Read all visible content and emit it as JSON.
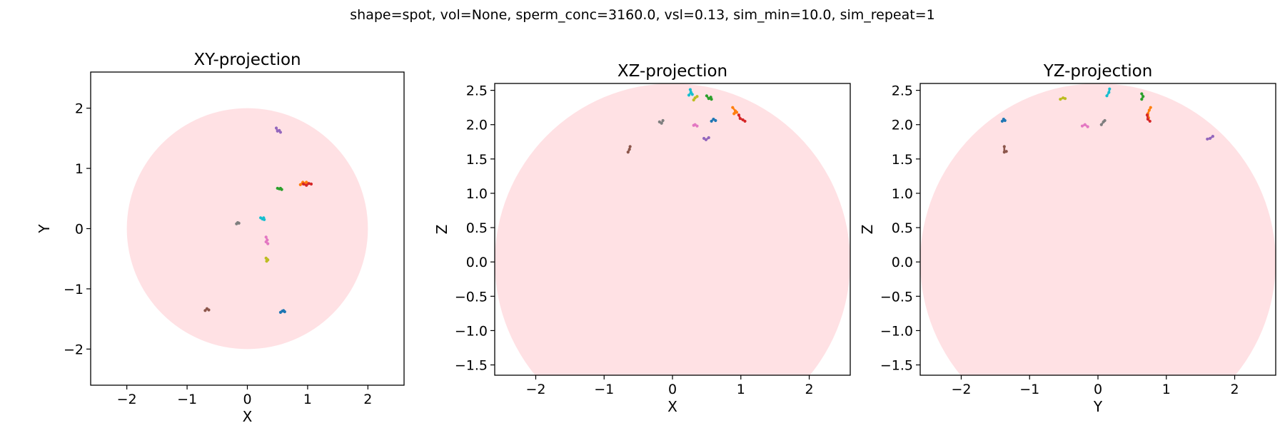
{
  "figure": {
    "suptitle": "shape=spot, vol=None, sperm_conc=3160.0, vsl=0.13, sim_min=10.0, sim_repeat=1"
  },
  "colors": {
    "sphere": "#ffe1e4",
    "tracks": [
      "#1f77b4",
      "#ff7f0e",
      "#2ca02c",
      "#d62728",
      "#9467bd",
      "#8c564b",
      "#e377c2",
      "#7f7f7f",
      "#bcbd22",
      "#17becf"
    ]
  },
  "chart_data": [
    {
      "type": "scatter",
      "title": "XY-projection",
      "xlabel": "X",
      "ylabel": "Y",
      "xlim": [
        -2.6,
        2.6
      ],
      "ylim": [
        -2.6,
        2.6
      ],
      "xticks": [
        -2,
        -1,
        0,
        1,
        2
      ],
      "yticks": [
        -2,
        -1,
        0,
        1,
        2
      ],
      "xtick_labels": [
        "−2",
        "−1",
        "0",
        "1",
        "2"
      ],
      "ytick_labels": [
        "−2",
        "−1",
        "0",
        "1",
        "2"
      ],
      "grid": false,
      "background_circle": {
        "cx": 0,
        "cy": 0,
        "r": 2.0
      },
      "series": [
        {
          "color_index": 0,
          "points": [
            [
              0.55,
              -1.39
            ],
            [
              0.58,
              -1.37
            ],
            [
              0.62,
              -1.38
            ],
            [
              0.6,
              -1.36
            ]
          ]
        },
        {
          "color_index": 1,
          "points": [
            [
              0.88,
              0.73
            ],
            [
              0.92,
              0.77
            ],
            [
              0.96,
              0.75
            ],
            [
              0.98,
              0.77
            ]
          ]
        },
        {
          "color_index": 2,
          "points": [
            [
              0.5,
              0.67
            ],
            [
              0.53,
              0.66
            ],
            [
              0.57,
              0.65
            ],
            [
              0.55,
              0.67
            ]
          ]
        },
        {
          "color_index": 3,
          "points": [
            [
              0.93,
              0.74
            ],
            [
              0.98,
              0.72
            ],
            [
              1.02,
              0.75
            ],
            [
              1.06,
              0.74
            ]
          ]
        },
        {
          "color_index": 4,
          "points": [
            [
              0.48,
              1.67
            ],
            [
              0.5,
              1.62
            ],
            [
              0.53,
              1.63
            ],
            [
              0.55,
              1.6
            ]
          ]
        },
        {
          "color_index": 5,
          "points": [
            [
              -0.7,
              -1.36
            ],
            [
              -0.67,
              -1.33
            ],
            [
              -0.64,
              -1.35
            ]
          ]
        },
        {
          "color_index": 6,
          "points": [
            [
              0.31,
              -0.14
            ],
            [
              0.33,
              -0.19
            ],
            [
              0.31,
              -0.22
            ],
            [
              0.34,
              -0.25
            ]
          ]
        },
        {
          "color_index": 7,
          "points": [
            [
              -0.18,
              0.08
            ],
            [
              -0.16,
              0.1
            ],
            [
              -0.14,
              0.09
            ]
          ]
        },
        {
          "color_index": 8,
          "points": [
            [
              0.31,
              -0.49
            ],
            [
              0.33,
              -0.51
            ],
            [
              0.32,
              -0.54
            ],
            [
              0.34,
              -0.52
            ]
          ]
        },
        {
          "color_index": 9,
          "points": [
            [
              0.22,
              0.18
            ],
            [
              0.25,
              0.16
            ],
            [
              0.27,
              0.18
            ],
            [
              0.28,
              0.15
            ]
          ]
        }
      ]
    },
    {
      "type": "scatter",
      "title": "XZ-projection",
      "xlabel": "X",
      "ylabel": "Z",
      "xlim": [
        -2.6,
        2.6
      ],
      "ylim": [
        -1.65,
        2.6
      ],
      "xticks": [
        -2,
        -1,
        0,
        1,
        2
      ],
      "yticks": [
        -1.5,
        -1.0,
        -0.5,
        0.0,
        0.5,
        1.0,
        1.5,
        2.0,
        2.5
      ],
      "xtick_labels": [
        "−2",
        "−1",
        "0",
        "1",
        "2"
      ],
      "ytick_labels": [
        "−1.5",
        "−1.0",
        "−0.5",
        "0.0",
        "0.5",
        "1.0",
        "1.5",
        "2.0",
        "2.5"
      ],
      "grid": false,
      "background_circle": {
        "cx": 0,
        "cy": 0,
        "r": 2.6
      },
      "series": [
        {
          "color_index": 0,
          "points": [
            [
              0.57,
              2.05
            ],
            [
              0.6,
              2.08
            ],
            [
              0.63,
              2.06
            ]
          ]
        },
        {
          "color_index": 1,
          "points": [
            [
              0.88,
              2.25
            ],
            [
              0.92,
              2.2
            ],
            [
              0.9,
              2.16
            ],
            [
              0.94,
              2.18
            ]
          ]
        },
        {
          "color_index": 2,
          "points": [
            [
              0.5,
              2.42
            ],
            [
              0.53,
              2.38
            ],
            [
              0.56,
              2.4
            ],
            [
              0.57,
              2.37
            ]
          ]
        },
        {
          "color_index": 3,
          "points": [
            [
              0.97,
              2.14
            ],
            [
              0.99,
              2.09
            ],
            [
              1.03,
              2.07
            ],
            [
              1.06,
              2.05
            ]
          ]
        },
        {
          "color_index": 4,
          "points": [
            [
              0.46,
              1.8
            ],
            [
              0.49,
              1.78
            ],
            [
              0.53,
              1.81
            ]
          ]
        },
        {
          "color_index": 5,
          "points": [
            [
              -0.65,
              1.6
            ],
            [
              -0.63,
              1.64
            ],
            [
              -0.62,
              1.68
            ]
          ]
        },
        {
          "color_index": 6,
          "points": [
            [
              0.31,
              1.99
            ],
            [
              0.33,
              2.0
            ],
            [
              0.36,
              1.98
            ]
          ]
        },
        {
          "color_index": 7,
          "points": [
            [
              -0.19,
              2.04
            ],
            [
              -0.16,
              2.02
            ],
            [
              -0.14,
              2.06
            ]
          ]
        },
        {
          "color_index": 8,
          "points": [
            [
              0.31,
              2.36
            ],
            [
              0.33,
              2.39
            ],
            [
              0.36,
              2.41
            ]
          ]
        },
        {
          "color_index": 9,
          "points": [
            [
              0.24,
              2.43
            ],
            [
              0.27,
              2.47
            ],
            [
              0.26,
              2.51
            ],
            [
              0.29,
              2.44
            ]
          ]
        }
      ]
    },
    {
      "type": "scatter",
      "title": "YZ-projection",
      "xlabel": "Y",
      "ylabel": "Z",
      "xlim": [
        -2.6,
        2.6
      ],
      "ylim": [
        -1.65,
        2.6
      ],
      "xticks": [
        -2,
        -1,
        0,
        1,
        2
      ],
      "yticks": [
        -1.5,
        -1.0,
        -0.5,
        0.0,
        0.5,
        1.0,
        1.5,
        2.0,
        2.5
      ],
      "xtick_labels": [
        "−2",
        "−1",
        "0",
        "1",
        "2"
      ],
      "ytick_labels": [
        "−1.5",
        "−1.0",
        "−0.5",
        "0.0",
        "0.5",
        "1.0",
        "1.5",
        "2.0",
        "2.5"
      ],
      "grid": false,
      "background_circle": {
        "cx": 0,
        "cy": 0,
        "r": 2.6
      },
      "series": [
        {
          "color_index": 0,
          "points": [
            [
              -1.4,
              2.05
            ],
            [
              -1.38,
              2.08
            ],
            [
              -1.36,
              2.06
            ]
          ]
        },
        {
          "color_index": 1,
          "points": [
            [
              0.74,
              2.1
            ],
            [
              0.73,
              2.16
            ],
            [
              0.75,
              2.21
            ],
            [
              0.77,
              2.25
            ]
          ]
        },
        {
          "color_index": 2,
          "points": [
            [
              0.64,
              2.37
            ],
            [
              0.66,
              2.41
            ],
            [
              0.64,
              2.45
            ]
          ]
        },
        {
          "color_index": 3,
          "points": [
            [
              0.72,
              2.14
            ],
            [
              0.73,
              2.08
            ],
            [
              0.76,
              2.05
            ]
          ]
        },
        {
          "color_index": 4,
          "points": [
            [
              1.6,
              1.79
            ],
            [
              1.64,
              1.8
            ],
            [
              1.68,
              1.83
            ]
          ]
        },
        {
          "color_index": 5,
          "points": [
            [
              -1.37,
              1.68
            ],
            [
              -1.37,
              1.6
            ],
            [
              -1.34,
              1.61
            ]
          ]
        },
        {
          "color_index": 6,
          "points": [
            [
              -0.23,
              1.98
            ],
            [
              -0.19,
              2.0
            ],
            [
              -0.15,
              1.97
            ]
          ]
        },
        {
          "color_index": 7,
          "points": [
            [
              0.05,
              2.0
            ],
            [
              0.08,
              2.04
            ],
            [
              0.1,
              2.06
            ]
          ]
        },
        {
          "color_index": 8,
          "points": [
            [
              -0.55,
              2.37
            ],
            [
              -0.51,
              2.39
            ],
            [
              -0.48,
              2.38
            ]
          ]
        },
        {
          "color_index": 9,
          "points": [
            [
              0.13,
              2.42
            ],
            [
              0.16,
              2.47
            ],
            [
              0.17,
              2.52
            ]
          ]
        }
      ]
    }
  ]
}
